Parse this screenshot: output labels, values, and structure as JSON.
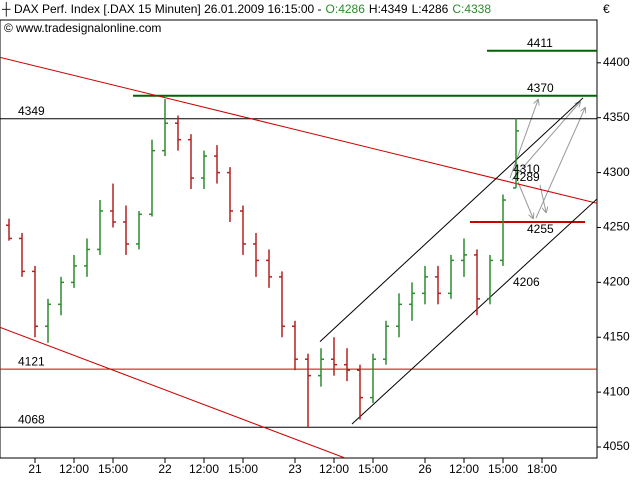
{
  "header": {
    "title": "DAX Perf. Index [.DAX  15 Minuten] 26.01.2009 16:15:00 -",
    "ohlc_labels": [
      "O:4286",
      "H:4349",
      "L:4286",
      "C:4338"
    ],
    "source": "www.tradesignalonline.com",
    "currency": "€"
  },
  "chart_data": {
    "type": "ohlc",
    "categories": [
      null,
      null,
      "21",
      null,
      null,
      "12:00",
      null,
      null,
      "15:00",
      null,
      null,
      null,
      "22",
      null,
      null,
      "12:00",
      null,
      null,
      "15:00",
      null,
      null,
      null,
      "23",
      null,
      null,
      "12:00",
      null,
      null,
      "15:00",
      null,
      null,
      null,
      "26",
      null,
      null,
      "12:00",
      null,
      null,
      "15:00",
      null,
      null,
      "18:00",
      null,
      null,
      null
    ],
    "ohlc": [
      [
        4252,
        4258,
        4238,
        4240
      ],
      [
        4240,
        4245,
        4205,
        4210
      ],
      [
        4210,
        4215,
        4150,
        4160
      ],
      [
        4160,
        4185,
        4145,
        4180
      ],
      [
        4180,
        4205,
        4170,
        4200
      ],
      [
        4200,
        4225,
        4195,
        4215
      ],
      [
        4215,
        4240,
        4205,
        4230
      ],
      [
        4230,
        4275,
        4225,
        4265
      ],
      [
        4265,
        4290,
        4250,
        4255
      ],
      [
        4255,
        4270,
        4225,
        4235
      ],
      [
        4235,
        4265,
        4230,
        4262
      ],
      [
        4262,
        4330,
        4260,
        4320
      ],
      [
        4320,
        4367,
        4315,
        4345
      ],
      [
        4345,
        4352,
        4320,
        4330
      ],
      [
        4330,
        4335,
        4285,
        4295
      ],
      [
        4295,
        4320,
        4285,
        4315
      ],
      [
        4315,
        4325,
        4290,
        4300
      ],
      [
        4300,
        4305,
        4255,
        4265
      ],
      [
        4265,
        4270,
        4225,
        4235
      ],
      [
        4235,
        4245,
        4205,
        4220
      ],
      [
        4220,
        4230,
        4195,
        4205
      ],
      [
        4205,
        4210,
        4150,
        4160
      ],
      [
        4160,
        4165,
        4120,
        4130
      ],
      [
        4130,
        4135,
        4068,
        4115
      ],
      [
        4115,
        4140,
        4105,
        4130
      ],
      [
        4130,
        4150,
        4115,
        4125
      ],
      [
        4125,
        4140,
        4110,
        4120
      ],
      [
        4120,
        4125,
        4075,
        4095
      ],
      [
        4095,
        4135,
        4090,
        4130
      ],
      [
        4130,
        4165,
        4125,
        4160
      ],
      [
        4160,
        4190,
        4150,
        4180
      ],
      [
        4180,
        4200,
        4165,
        4190
      ],
      [
        4190,
        4215,
        4180,
        4205
      ],
      [
        4205,
        4215,
        4180,
        4190
      ],
      [
        4190,
        4225,
        4185,
        4220
      ],
      [
        4220,
        4240,
        4205,
        4225
      ],
      [
        4225,
        4230,
        4170,
        4185
      ],
      [
        4185,
        4225,
        4180,
        4220
      ],
      [
        4220,
        4280,
        4215,
        4275
      ],
      [
        4286,
        4349,
        4286,
        4338
      ],
      null,
      null,
      null,
      null,
      null
    ],
    "up_color": "#2e8b2e",
    "down_color": "#b22222",
    "ylim": [
      4040,
      4439
    ],
    "yticks": [
      4050,
      4100,
      4150,
      4200,
      4250,
      4300,
      4350,
      4400
    ],
    "levels": [
      {
        "value": 4411,
        "color": "#006400"
      },
      {
        "value": 4370,
        "color": "#006400"
      },
      {
        "value": 4349,
        "color": "#000000"
      },
      {
        "value": 4255,
        "color": "#cc0000"
      },
      {
        "value": 4121,
        "color": "#cc0000"
      },
      {
        "value": 4068,
        "color": "#000000"
      }
    ],
    "trendlines": [
      {
        "color": "#cc0000",
        "y": [
          4405,
          4272
        ]
      },
      {
        "color": "#cc0000",
        "y": [
          4159,
          4040
        ]
      },
      {
        "color": "#000000",
        "y": [
          4146,
          4368
        ]
      },
      {
        "color": "#000000",
        "y": [
          4071,
          4276
        ]
      }
    ],
    "line_labels": [
      {
        "value": 4310,
        "color": "#000000"
      },
      {
        "value": 4289,
        "color": "#cc0000"
      },
      {
        "value": 4206,
        "color": "#000000"
      }
    ]
  }
}
